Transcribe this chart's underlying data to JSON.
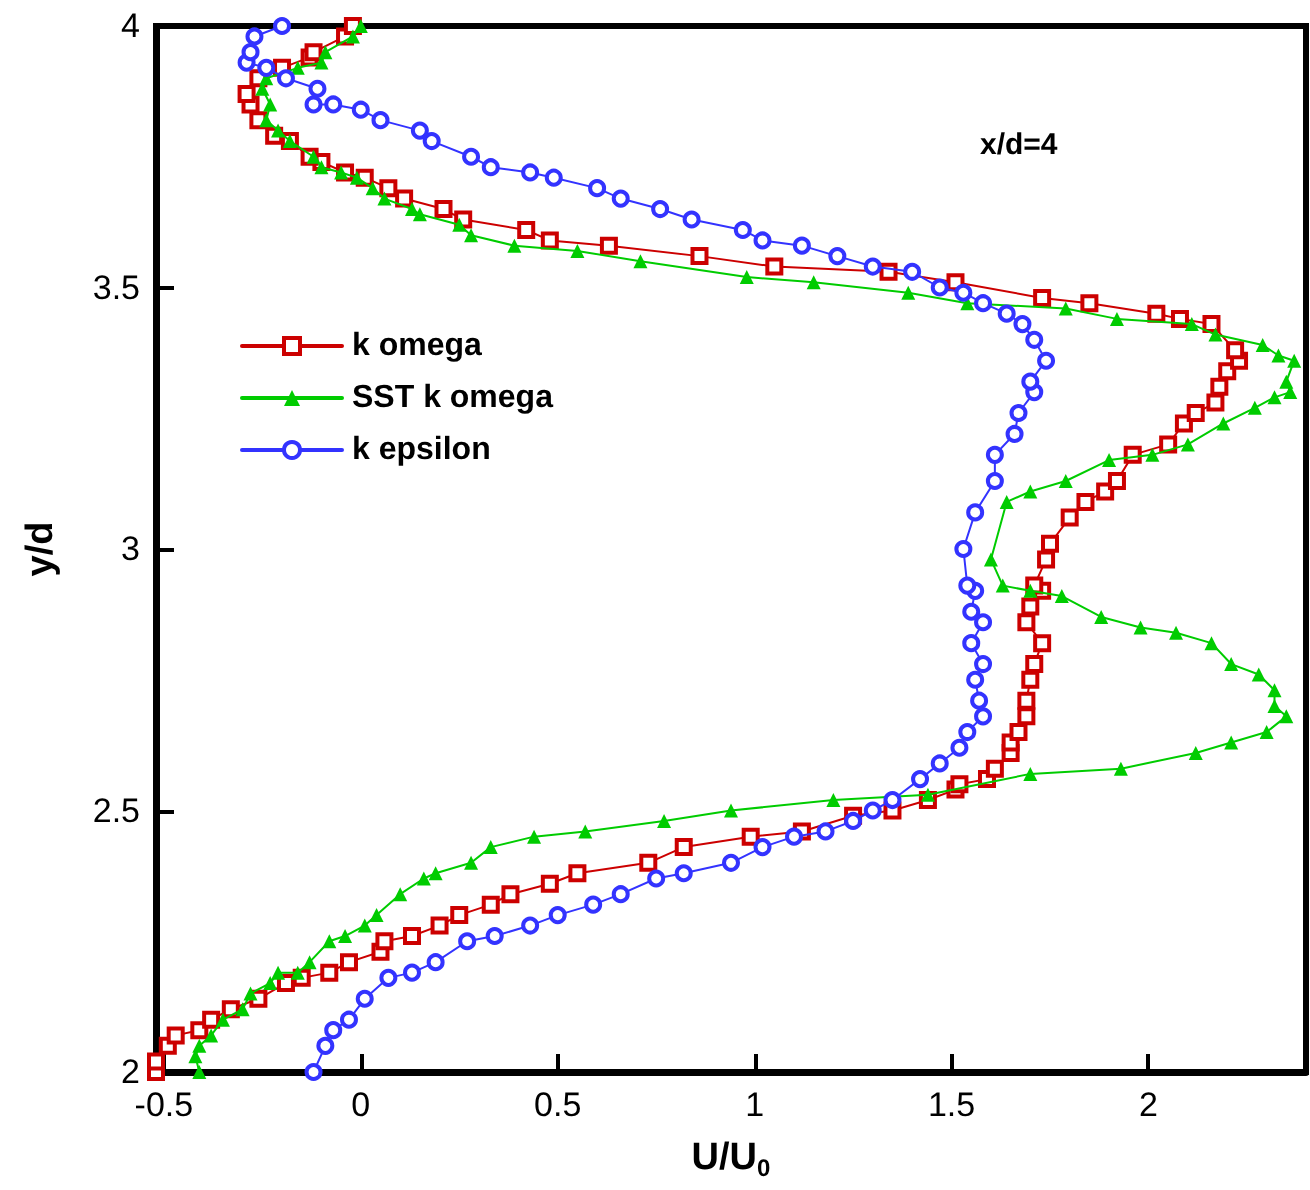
{
  "chart_data": {
    "type": "line",
    "xlabel": "U/U$_{0}$",
    "ylabel": "y/d",
    "annotations": [
      "x/d=4"
    ],
    "xlim": [
      -0.52,
      2.4
    ],
    "xticks": [
      -0.5,
      0,
      0.5,
      1,
      1.5,
      2
    ],
    "ylim": [
      2,
      4
    ],
    "yticks": [
      2,
      2.5,
      3,
      3.5,
      4
    ],
    "grid": false,
    "legend": "left",
    "line_style": "solid",
    "series": [
      {
        "name": "k omega",
        "color": "#cc0000",
        "marker": "square",
        "x": [
          -0.52,
          -0.52,
          -0.49,
          -0.47,
          -0.41,
          -0.38,
          -0.33,
          -0.26,
          -0.19,
          -0.15,
          -0.08,
          -0.03,
          0.05,
          0.06,
          0.13,
          0.2,
          0.25,
          0.33,
          0.38,
          0.48,
          0.55,
          0.73,
          0.82,
          0.99,
          1.12,
          1.25,
          1.35,
          1.44,
          1.51,
          1.52,
          1.59,
          1.61,
          1.65,
          1.65,
          1.67,
          1.69,
          1.69,
          1.7,
          1.71,
          1.73,
          1.69,
          1.7,
          1.73,
          1.71,
          1.74,
          1.75,
          1.8,
          1.84,
          1.89,
          1.92,
          1.96,
          2.05,
          2.09,
          2.12,
          2.17,
          2.18,
          2.2,
          2.23,
          2.22,
          2.16,
          2.08,
          2.02,
          1.85,
          1.73,
          1.51,
          1.34,
          1.05,
          0.86,
          0.63,
          0.48,
          0.42,
          0.26,
          0.21,
          0.11,
          0.07,
          0.01,
          -0.04,
          -0.1,
          -0.13,
          -0.18,
          -0.22,
          -0.26,
          -0.28,
          -0.29,
          -0.26,
          -0.2,
          -0.13,
          -0.12,
          -0.04,
          -0.02
        ],
        "values": [
          2.0,
          2.02,
          2.05,
          2.07,
          2.08,
          2.1,
          2.12,
          2.14,
          2.17,
          2.18,
          2.19,
          2.21,
          2.23,
          2.25,
          2.26,
          2.28,
          2.3,
          2.32,
          2.34,
          2.36,
          2.38,
          2.4,
          2.43,
          2.45,
          2.46,
          2.49,
          2.5,
          2.52,
          2.54,
          2.55,
          2.56,
          2.58,
          2.61,
          2.63,
          2.65,
          2.68,
          2.71,
          2.75,
          2.78,
          2.82,
          2.86,
          2.89,
          2.92,
          2.93,
          2.98,
          3.01,
          3.06,
          3.09,
          3.11,
          3.13,
          3.18,
          3.2,
          3.24,
          3.26,
          3.28,
          3.31,
          3.34,
          3.36,
          3.38,
          3.43,
          3.44,
          3.45,
          3.47,
          3.48,
          3.51,
          3.53,
          3.54,
          3.56,
          3.58,
          3.59,
          3.61,
          3.63,
          3.65,
          3.67,
          3.69,
          3.71,
          3.72,
          3.74,
          3.75,
          3.78,
          3.79,
          3.82,
          3.85,
          3.87,
          3.9,
          3.92,
          3.94,
          3.95,
          3.98,
          4.0
        ]
      },
      {
        "name": "SST k omega",
        "color": "#00cc00",
        "marker": "triangle",
        "x": [
          -0.41,
          -0.42,
          -0.41,
          -0.38,
          -0.35,
          -0.3,
          -0.28,
          -0.23,
          -0.21,
          -0.16,
          -0.13,
          -0.08,
          -0.04,
          0.01,
          0.04,
          0.1,
          0.16,
          0.19,
          0.28,
          0.33,
          0.44,
          0.57,
          0.77,
          0.94,
          1.2,
          1.44,
          1.7,
          1.93,
          2.12,
          2.21,
          2.3,
          2.35,
          2.32,
          2.32,
          2.28,
          2.21,
          2.16,
          2.07,
          1.98,
          1.88,
          1.78,
          1.7,
          1.63,
          1.6,
          1.64,
          1.7,
          1.79,
          1.9,
          2.01,
          2.1,
          2.19,
          2.27,
          2.32,
          2.36,
          2.35,
          2.37,
          2.33,
          2.29,
          2.17,
          2.11,
          1.92,
          1.79,
          1.54,
          1.39,
          1.15,
          0.98,
          0.71,
          0.55,
          0.39,
          0.28,
          0.25,
          0.15,
          0.13,
          0.06,
          0.03,
          -0.01,
          -0.05,
          -0.1,
          -0.12,
          -0.18,
          -0.21,
          -0.24,
          -0.23,
          -0.25,
          -0.24,
          -0.16,
          -0.1,
          -0.09,
          -0.02,
          0.0
        ],
        "values": [
          2.0,
          2.03,
          2.05,
          2.07,
          2.1,
          2.12,
          2.15,
          2.17,
          2.19,
          2.19,
          2.21,
          2.25,
          2.26,
          2.28,
          2.3,
          2.34,
          2.37,
          2.38,
          2.4,
          2.43,
          2.45,
          2.46,
          2.48,
          2.5,
          2.52,
          2.53,
          2.57,
          2.58,
          2.61,
          2.63,
          2.65,
          2.68,
          2.7,
          2.73,
          2.76,
          2.78,
          2.82,
          2.84,
          2.85,
          2.87,
          2.91,
          2.92,
          2.93,
          2.98,
          3.09,
          3.11,
          3.13,
          3.17,
          3.18,
          3.2,
          3.24,
          3.27,
          3.29,
          3.3,
          3.32,
          3.36,
          3.37,
          3.39,
          3.41,
          3.43,
          3.44,
          3.46,
          3.47,
          3.49,
          3.51,
          3.52,
          3.55,
          3.57,
          3.58,
          3.6,
          3.62,
          3.64,
          3.65,
          3.67,
          3.69,
          3.71,
          3.72,
          3.73,
          3.75,
          3.78,
          3.8,
          3.82,
          3.85,
          3.88,
          3.9,
          3.92,
          3.93,
          3.95,
          3.98,
          4.0
        ]
      },
      {
        "name": "k epsilon",
        "color": "#3333ff",
        "marker": "circle",
        "x": [
          -0.12,
          -0.09,
          -0.07,
          -0.03,
          0.01,
          0.07,
          0.13,
          0.19,
          0.27,
          0.34,
          0.43,
          0.5,
          0.59,
          0.66,
          0.75,
          0.82,
          0.94,
          1.02,
          1.1,
          1.18,
          1.25,
          1.3,
          1.35,
          1.42,
          1.47,
          1.52,
          1.54,
          1.58,
          1.57,
          1.56,
          1.58,
          1.55,
          1.58,
          1.55,
          1.56,
          1.54,
          1.53,
          1.56,
          1.61,
          1.61,
          1.66,
          1.67,
          1.71,
          1.7,
          1.74,
          1.71,
          1.68,
          1.64,
          1.58,
          1.53,
          1.47,
          1.4,
          1.3,
          1.21,
          1.12,
          1.02,
          0.97,
          0.84,
          0.76,
          0.66,
          0.6,
          0.49,
          0.43,
          0.33,
          0.28,
          0.18,
          0.15,
          0.05,
          0.0,
          -0.07,
          -0.12,
          -0.11,
          -0.19,
          -0.24,
          -0.29,
          -0.28,
          -0.27,
          -0.2
        ],
        "values": [
          2.0,
          2.05,
          2.08,
          2.1,
          2.14,
          2.18,
          2.19,
          2.21,
          2.25,
          2.26,
          2.28,
          2.3,
          2.32,
          2.34,
          2.37,
          2.38,
          2.4,
          2.43,
          2.45,
          2.46,
          2.48,
          2.5,
          2.52,
          2.56,
          2.59,
          2.62,
          2.65,
          2.68,
          2.71,
          2.75,
          2.78,
          2.82,
          2.86,
          2.88,
          2.92,
          2.93,
          3.0,
          3.07,
          3.13,
          3.18,
          3.22,
          3.26,
          3.3,
          3.32,
          3.36,
          3.4,
          3.43,
          3.45,
          3.47,
          3.49,
          3.5,
          3.53,
          3.54,
          3.56,
          3.58,
          3.59,
          3.61,
          3.63,
          3.65,
          3.67,
          3.69,
          3.71,
          3.72,
          3.73,
          3.75,
          3.78,
          3.8,
          3.82,
          3.84,
          3.85,
          3.85,
          3.88,
          3.9,
          3.92,
          3.93,
          3.95,
          3.98,
          4.0
        ]
      }
    ]
  }
}
